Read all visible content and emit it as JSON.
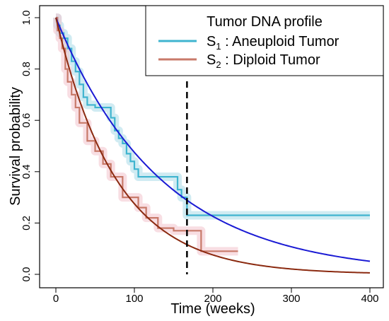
{
  "chart_data": {
    "type": "line",
    "title": "",
    "xlabel": "Time (weeks)",
    "ylabel": "Survival probability",
    "xlim": [
      0,
      400
    ],
    "ylim": [
      0,
      1
    ],
    "x_ticks": [
      0,
      100,
      200,
      300,
      400
    ],
    "y_ticks": [
      0.0,
      0.2,
      0.4,
      0.6,
      0.8,
      1.0
    ],
    "x_tick_labels": [
      "0",
      "100",
      "200",
      "300",
      "400"
    ],
    "y_tick_labels": [
      "0.0",
      "0.2",
      "0.4",
      "0.6",
      "0.8",
      "1.0"
    ],
    "grid": false,
    "legend": {
      "title": "Tumor DNA profile",
      "placement": "top-right",
      "entries": [
        {
          "symbol": "S",
          "subscript": "1",
          "label": ": Aneuploid Tumor",
          "color": "#3fb4cf"
        },
        {
          "symbol": "S",
          "subscript": "2",
          "label": ": Diploid Tumor",
          "color": "#c87a6a"
        }
      ]
    },
    "vertical_reference_line": {
      "x": 167,
      "style": "dashed",
      "color": "#000000"
    },
    "step_series": [
      {
        "legend_index": 0,
        "color": "#3fb4cf",
        "band_color": "#a9dbe8",
        "x": [
          0,
          2,
          5,
          10,
          15,
          20,
          25,
          30,
          35,
          40,
          50,
          60,
          70,
          75,
          80,
          85,
          90,
          95,
          100,
          105,
          155,
          160,
          167,
          400
        ],
        "y": [
          1.0,
          0.97,
          0.94,
          0.92,
          0.88,
          0.83,
          0.79,
          0.74,
          0.69,
          0.66,
          0.65,
          0.65,
          0.61,
          0.56,
          0.53,
          0.51,
          0.47,
          0.44,
          0.41,
          0.38,
          0.33,
          0.3,
          0.23,
          0.23
        ]
      },
      {
        "legend_index": 1,
        "color": "#c87a6a",
        "band_color": "#f2c2cc",
        "x": [
          0,
          2,
          5,
          8,
          12,
          15,
          20,
          25,
          30,
          40,
          50,
          60,
          70,
          85,
          105,
          115,
          130,
          150,
          175,
          185,
          232
        ],
        "y": [
          1.0,
          0.95,
          0.92,
          0.88,
          0.8,
          0.75,
          0.7,
          0.65,
          0.59,
          0.52,
          0.48,
          0.43,
          0.38,
          0.3,
          0.26,
          0.22,
          0.18,
          0.17,
          0.17,
          0.09,
          0.09
        ]
      }
    ],
    "fitted_series": [
      {
        "legend_index": 0,
        "color": "#1a1ad4",
        "model": "exponential",
        "rate": 0.00744
      },
      {
        "legend_index": 1,
        "color": "#8b2a10",
        "model": "exponential",
        "rate": 0.01291
      }
    ]
  }
}
